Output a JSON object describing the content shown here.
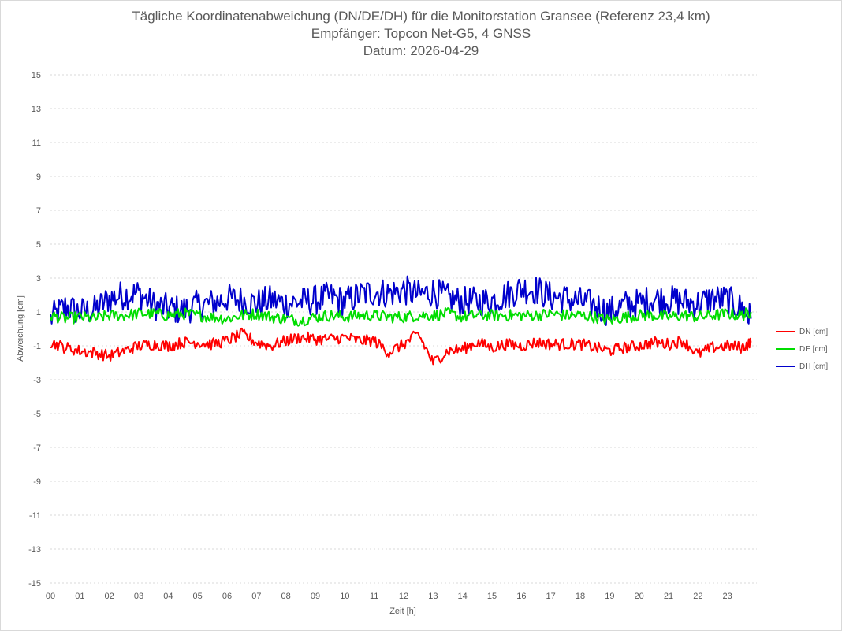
{
  "chart_data": {
    "type": "line",
    "title": "Tägliche Koordinatenabweichung (DN/DE/DH) für die Monitorstation Gransee (Referenz 23,4 km)",
    "subtitle": "Empfänger: Topcon Net-G5, 4 GNSS",
    "date_line": "Datum: 2026-04-29",
    "xlabel": "Zeit [h]",
    "ylabel": "Abweichung [cm]",
    "xlim": [
      0,
      24
    ],
    "ylim": [
      -15,
      15
    ],
    "x_ticks": [
      "00",
      "01",
      "02",
      "03",
      "04",
      "05",
      "06",
      "07",
      "08",
      "09",
      "10",
      "11",
      "12",
      "13",
      "14",
      "15",
      "16",
      "17",
      "18",
      "19",
      "20",
      "21",
      "22",
      "23"
    ],
    "y_ticks": [
      15,
      13,
      11,
      9,
      7,
      5,
      3,
      1,
      -1,
      -3,
      -5,
      -7,
      -9,
      -11,
      -13,
      -15
    ],
    "grid": "horizontal dotted",
    "legend_position": "right",
    "x_hours": [
      0.0,
      0.5,
      1.0,
      1.5,
      2.0,
      2.5,
      3.0,
      3.5,
      4.0,
      4.5,
      5.0,
      5.5,
      6.0,
      6.5,
      7.0,
      7.5,
      8.0,
      8.5,
      9.0,
      9.5,
      10.0,
      10.5,
      11.0,
      11.5,
      12.0,
      12.5,
      13.0,
      13.5,
      14.0,
      14.5,
      15.0,
      15.5,
      16.0,
      16.5,
      17.0,
      17.5,
      18.0,
      18.5,
      19.0,
      19.5,
      20.0,
      20.5,
      21.0,
      21.5,
      22.0,
      22.5,
      23.0,
      23.5,
      23.8
    ],
    "series": [
      {
        "name": "DN [cm]",
        "color": "#ff0000",
        "values": [
          -0.8,
          -1.1,
          -1.3,
          -1.4,
          -1.6,
          -1.3,
          -1.0,
          -0.9,
          -1.0,
          -0.8,
          -0.8,
          -0.9,
          -0.7,
          -0.3,
          -0.8,
          -1.0,
          -0.7,
          -0.5,
          -0.6,
          -0.6,
          -0.5,
          -0.7,
          -0.7,
          -1.4,
          -0.9,
          -0.3,
          -2.0,
          -1.3,
          -1.2,
          -0.8,
          -1.1,
          -0.9,
          -1.0,
          -0.8,
          -0.9,
          -0.9,
          -0.9,
          -1.1,
          -1.3,
          -1.1,
          -1.0,
          -0.8,
          -0.9,
          -0.7,
          -1.5,
          -1.1,
          -1.0,
          -1.1,
          -0.8
        ]
      },
      {
        "name": "DE [cm]",
        "color": "#00dd00",
        "values": [
          0.8,
          0.6,
          0.7,
          0.6,
          0.8,
          0.8,
          0.9,
          0.9,
          0.8,
          0.9,
          0.8,
          0.7,
          0.6,
          0.8,
          0.9,
          0.7,
          0.6,
          0.5,
          0.7,
          0.8,
          0.7,
          0.8,
          0.8,
          0.7,
          0.7,
          0.8,
          0.8,
          0.9,
          0.7,
          0.8,
          0.8,
          0.8,
          0.8,
          0.8,
          0.9,
          0.8,
          0.8,
          0.7,
          0.5,
          0.7,
          0.8,
          0.8,
          0.7,
          0.8,
          0.7,
          0.8,
          0.9,
          0.8,
          1.0
        ]
      },
      {
        "name": "DH [cm]",
        "color": "#0000cc",
        "values": [
          0.6,
          1.3,
          1.0,
          1.1,
          1.8,
          2.0,
          2.1,
          1.4,
          1.2,
          1.1,
          1.4,
          1.5,
          1.8,
          1.7,
          1.5,
          1.7,
          1.5,
          1.6,
          1.7,
          1.9,
          1.6,
          2.0,
          2.2,
          2.1,
          2.3,
          2.0,
          2.2,
          1.8,
          1.6,
          1.6,
          1.7,
          2.0,
          2.4,
          2.3,
          1.9,
          1.8,
          1.6,
          1.4,
          1.0,
          1.4,
          1.5,
          1.8,
          1.7,
          1.6,
          1.5,
          1.8,
          1.7,
          1.2,
          0.6
        ]
      }
    ]
  }
}
